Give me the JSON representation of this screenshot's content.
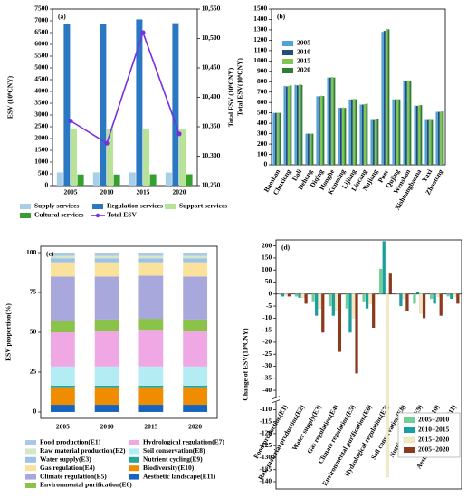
{
  "chart_data": [
    {
      "type": "bar",
      "label": "(a)",
      "ylabel": "ESV (10⁸CNY)",
      "y2label": "Total ESV (10⁸CNY)",
      "categories": [
        "2005",
        "2010",
        "2015",
        "2020"
      ],
      "series": [
        {
          "name": "Supply services",
          "color": "#a8cfe8",
          "values": [
            560,
            560,
            560,
            555
          ]
        },
        {
          "name": "Regulation services",
          "color": "#2b78c2",
          "values": [
            6880,
            6860,
            7060,
            6900
          ]
        },
        {
          "name": "Support services",
          "color": "#b8e295",
          "values": [
            2400,
            2400,
            2400,
            2380
          ]
        },
        {
          "name": "Cultural services",
          "color": "#35a02f",
          "values": [
            470,
            470,
            480,
            480
          ]
        },
        {
          "name": "Total ESV",
          "color": "#7a2ee0",
          "type": "line",
          "axis": "y2",
          "values": [
            10360,
            10322,
            10510,
            10338
          ]
        }
      ],
      "ylim": [
        0,
        7500
      ],
      "yticks": [
        0,
        500,
        1000,
        1500,
        2000,
        2500,
        3000,
        3500,
        4000,
        4500,
        5000,
        5500,
        6000,
        6500,
        7000,
        7500
      ],
      "y2lim": [
        10250,
        10550
      ],
      "y2ticks": [
        {
          "value": 10250,
          "label": "10,250"
        },
        {
          "value": 10300,
          "label": "10,300"
        },
        {
          "value": 10350,
          "label": "10,350"
        },
        {
          "value": 10400,
          "label": "10,400"
        },
        {
          "value": 10450,
          "label": "10,450"
        },
        {
          "value": 10500,
          "label": "10,500"
        },
        {
          "value": 10550,
          "label": "10,550"
        }
      ],
      "legend": "bottom"
    },
    {
      "type": "bar",
      "label": "(b)",
      "ylabel": "Total ESV(10⁸CNY)",
      "categories": [
        "Baoshan",
        "Chuxiong",
        "Dali",
        "Dehong",
        "Diqing",
        "Honghe",
        "Kunming",
        "Lijiang",
        "Lincang",
        "Nujiang",
        "Puer",
        "Qujing",
        "Wenshan",
        "Xishuangbanna",
        "Yuxi",
        "Zhaotong"
      ],
      "series": [
        {
          "name": "2005",
          "color": "#4fa3d9",
          "values": [
            500,
            760,
            770,
            300,
            660,
            840,
            550,
            630,
            580,
            440,
            1280,
            630,
            810,
            570,
            440,
            510
          ]
        },
        {
          "name": "2010",
          "color": "#1f4e79",
          "values": [
            500,
            755,
            765,
            300,
            660,
            840,
            548,
            630,
            580,
            440,
            1290,
            630,
            810,
            568,
            440,
            510
          ]
        },
        {
          "name": "2015",
          "color": "#7ec850",
          "values": [
            502,
            760,
            775,
            302,
            665,
            845,
            552,
            635,
            585,
            442,
            1310,
            632,
            812,
            572,
            442,
            512
          ]
        },
        {
          "name": "2020",
          "color": "#2e7d32",
          "values": [
            500,
            765,
            770,
            300,
            662,
            840,
            548,
            632,
            588,
            445,
            1305,
            630,
            808,
            575,
            440,
            515
          ]
        }
      ],
      "ylim": [
        0,
        1500
      ],
      "yticks": [
        0,
        100,
        200,
        300,
        400,
        500,
        600,
        700,
        800,
        900,
        1000,
        1100,
        1200,
        1300,
        1400,
        1500
      ],
      "legend": "upper left"
    },
    {
      "type": "stacked_bar",
      "label": "(c)",
      "ylabel": "ESV proportion(%)",
      "categories": [
        "2005",
        "2010",
        "2015",
        "2020"
      ],
      "series": [
        {
          "name": "Food production(E1)",
          "color": "#a9c9e6",
          "values": [
            2,
            2,
            2,
            2
          ]
        },
        {
          "name": "Raw material production(E2)",
          "color": "#d6e6c9",
          "values": [
            1.5,
            1.5,
            1.5,
            1.5
          ]
        },
        {
          "name": "Water supply(E3)",
          "color": "#9cc2e8",
          "values": [
            2.5,
            2.5,
            2.5,
            2.5
          ]
        },
        {
          "name": "Gas regulation(E4)",
          "color": "#fbe29c",
          "values": [
            9,
            9,
            8.5,
            9
          ]
        },
        {
          "name": "Climate regulation(E5)",
          "color": "#a9a8dc",
          "values": [
            28,
            27,
            27,
            27
          ]
        },
        {
          "name": "Environmental purification(E6)",
          "color": "#8bc34a",
          "values": [
            7,
            7.5,
            7.5,
            7.5
          ]
        },
        {
          "name": "Hydrological regulation(E7)",
          "color": "#f0a8e4",
          "values": [
            21.5,
            22,
            22.5,
            22
          ]
        },
        {
          "name": "Soil conservation(E8)",
          "color": "#b4ecf3",
          "values": [
            12,
            12,
            12,
            12
          ]
        },
        {
          "name": "Nutrient cycling(E9)",
          "color": "#26a69a",
          "values": [
            1,
            1,
            1,
            1
          ]
        },
        {
          "name": "Biodiversity(E10)",
          "color": "#ef8c00",
          "values": [
            11,
            11,
            11,
            11
          ]
        },
        {
          "name": "Aesthetic landscape(E11)",
          "color": "#1565c0",
          "values": [
            4.5,
            4.5,
            4.5,
            4.5
          ]
        }
      ],
      "ylim": [
        -4,
        104
      ],
      "yticks": [
        0,
        25,
        50,
        75,
        100
      ],
      "legend": "bottom"
    },
    {
      "type": "bar",
      "label": "(d)",
      "ylabel": "Change of ESV(10⁸CNY)",
      "categories": [
        "Food production(E1)",
        "Raw material production(E2)",
        "Water supply(E3)",
        "Gas regulation(E4)",
        "Climate regulation(E5)",
        "Environmental purification(E6)",
        "Hydrological regulation(E7)",
        "Soil conservation(E8)",
        "Nutrient cycling(E9)",
        "Biodiversity(E10)",
        "Aesthetic landscape(E11)"
      ],
      "series": [
        {
          "name": "2005−2010",
          "color": "#6fcf97",
          "values": [
            1.5,
            -1,
            -3,
            -5,
            -6,
            -3,
            105,
            1,
            -4,
            -2,
            -1
          ]
        },
        {
          "name": "2010−2015",
          "color": "#1a9e9e",
          "values": [
            -1,
            -1.5,
            -9,
            -9,
            -16,
            -6,
            220,
            -5,
            10,
            -4,
            -2
          ]
        },
        {
          "name": "2015−2020",
          "color": "#f3e9c6",
          "values": [
            -0.5,
            -1.5,
            -6,
            -7,
            -10,
            -4,
            -138,
            -2,
            -8,
            -1,
            -1
          ]
        },
        {
          "name": "2005−2020",
          "color": "#8b3a1e",
          "values": [
            -1,
            -4,
            -16,
            -24,
            -33,
            -14,
            85,
            -7,
            -10,
            -9,
            -4
          ]
        }
      ],
      "ylim": [
        -143,
        225
      ],
      "yticks": [
        200,
        150,
        100,
        50,
        0,
        -5,
        -10,
        -15,
        -20,
        -25,
        -30,
        -35,
        -40,
        -110,
        -115,
        -120,
        -125,
        -130,
        -135,
        -140
      ],
      "legend": "lower right"
    }
  ]
}
